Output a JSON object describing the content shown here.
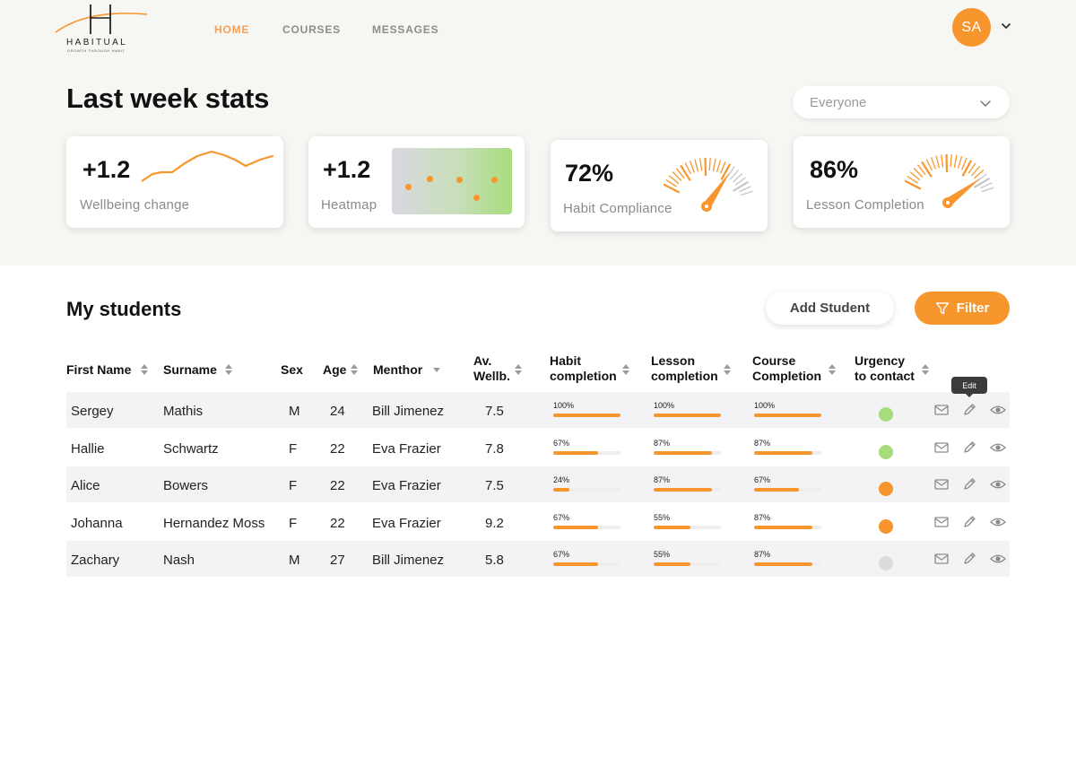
{
  "brand": {
    "wordmark": "HABITUAL",
    "tagline": "GROWTH THROUGH HABIT",
    "accent": "#f7962c"
  },
  "nav": {
    "items": [
      {
        "label": "HOME",
        "active": true
      },
      {
        "label": "COURSES",
        "active": false
      },
      {
        "label": "MESSAGES",
        "active": false
      }
    ]
  },
  "user": {
    "initials": "SA"
  },
  "stats": {
    "title": "Last week stats",
    "audience_select": "Everyone",
    "cards": [
      {
        "value": "+1.2",
        "label": "Wellbeing change",
        "visual": "sparkline"
      },
      {
        "value": "+1.2",
        "label": "Heatmap",
        "visual": "heatmap"
      },
      {
        "value": "72%",
        "label": "Habit Compliance",
        "visual": "gauge",
        "level": 0.72
      },
      {
        "value": "86%",
        "label": "Lesson Completion",
        "visual": "gauge",
        "level": 0.86
      }
    ]
  },
  "students": {
    "title": "My students",
    "add_label": "Add Student",
    "filter_label": "Filter",
    "columns": [
      {
        "line1": "First Name",
        "line2": ""
      },
      {
        "line1": "Surname",
        "line2": ""
      },
      {
        "line1": "Sex",
        "line2": ""
      },
      {
        "line1": "Age",
        "line2": ""
      },
      {
        "line1": "Menthor",
        "line2": ""
      },
      {
        "line1": "Av.",
        "line2": "Wellb."
      },
      {
        "line1": "Habit",
        "line2": "completion"
      },
      {
        "line1": "Lesson",
        "line2": "completion"
      },
      {
        "line1": "Course",
        "line2": "Completion"
      },
      {
        "line1": "Urgency",
        "line2": "to contact"
      }
    ],
    "tooltip": "Edit",
    "rows": [
      {
        "first": "Sergey",
        "surname": "Mathis",
        "sex": "M",
        "age": "24",
        "mentor": "Bill Jimenez",
        "wellb": "7.5",
        "habit": "100%",
        "lesson": "100%",
        "course": "100%",
        "urgency": "#a7dc7c"
      },
      {
        "first": "Hallie",
        "surname": "Schwartz",
        "sex": "F",
        "age": "22",
        "mentor": "Eva Frazier",
        "wellb": "7.8",
        "habit": "67%",
        "lesson": "87%",
        "course": "87%",
        "urgency": "#a7dc7c"
      },
      {
        "first": "Alice",
        "surname": "Bowers",
        "sex": "F",
        "age": "22",
        "mentor": "Eva Frazier",
        "wellb": "7.5",
        "habit": "24%",
        "lesson": "87%",
        "course": "67%",
        "urgency": "#f7962c"
      },
      {
        "first": "Johanna",
        "surname": "Hernandez Moss",
        "sex": "F",
        "age": "22",
        "mentor": "Eva Frazier",
        "wellb": "9.2",
        "habit": "67%",
        "lesson": "55%",
        "course": "87%",
        "urgency": "#f7962c"
      },
      {
        "first": "Zachary",
        "surname": "Nash",
        "sex": "M",
        "age": "27",
        "mentor": "Bill Jimenez",
        "wellb": "5.8",
        "habit": "67%",
        "lesson": "55%",
        "course": "87%",
        "urgency": "#dcdcdc"
      }
    ]
  }
}
